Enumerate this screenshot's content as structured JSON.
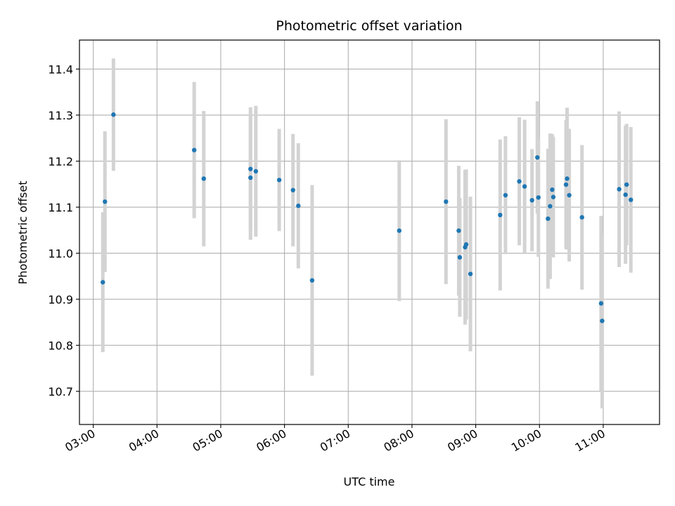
{
  "chart_data": {
    "type": "scatter",
    "title": "Photometric offset variation",
    "xlabel": "UTC time",
    "ylabel": "Photometric offset",
    "x_unit": "UTC time (HH:MM)",
    "x_ticks": [
      "03:00",
      "04:00",
      "05:00",
      "06:00",
      "07:00",
      "08:00",
      "09:00",
      "10:00",
      "11:00"
    ],
    "y_ticks": [
      "10.7",
      "10.8",
      "10.9",
      "11.0",
      "11.1",
      "11.2",
      "11.3",
      "11.4"
    ],
    "xlim": [
      "02:47",
      "11:53"
    ],
    "ylim": [
      10.628,
      11.463
    ],
    "grid": true,
    "point_color": "#1f77b4",
    "errorbar_color": "#d3d3d3",
    "series": [
      {
        "points": [
          {
            "x": "03:09",
            "y": 10.937,
            "err": 0.152
          },
          {
            "x": "03:11",
            "y": 11.112,
            "err": 0.153
          },
          {
            "x": "03:19",
            "y": 11.301,
            "err": 0.122
          },
          {
            "x": "04:35",
            "y": 11.224,
            "err": 0.148
          },
          {
            "x": "04:44",
            "y": 11.162,
            "err": 0.147
          },
          {
            "x": "05:28",
            "y": 11.183,
            "err": 0.134
          },
          {
            "x": "05:28",
            "y": 11.164,
            "err": 0.135
          },
          {
            "x": "05:33",
            "y": 11.178,
            "err": 0.142
          },
          {
            "x": "05:55",
            "y": 11.159,
            "err": 0.111
          },
          {
            "x": "06:08",
            "y": 11.137,
            "err": 0.122
          },
          {
            "x": "06:13",
            "y": 11.103,
            "err": 0.136
          },
          {
            "x": "06:26",
            "y": 10.941,
            "err": 0.207
          },
          {
            "x": "07:48",
            "y": 11.049,
            "err": 0.153
          },
          {
            "x": "08:32",
            "y": 11.112,
            "err": 0.179
          },
          {
            "x": "08:44",
            "y": 11.049,
            "err": 0.141
          },
          {
            "x": "08:45",
            "y": 10.991,
            "err": 0.129
          },
          {
            "x": "08:50",
            "y": 11.013,
            "err": 0.168
          },
          {
            "x": "08:51",
            "y": 11.019,
            "err": 0.163
          },
          {
            "x": "08:55",
            "y": 10.955,
            "err": 0.168
          },
          {
            "x": "09:23",
            "y": 11.083,
            "err": 0.164
          },
          {
            "x": "09:28",
            "y": 11.126,
            "err": 0.128
          },
          {
            "x": "09:41",
            "y": 11.156,
            "err": 0.139
          },
          {
            "x": "09:46",
            "y": 11.145,
            "err": 0.145
          },
          {
            "x": "09:53",
            "y": 11.115,
            "err": 0.111
          },
          {
            "x": "09:58",
            "y": 11.208,
            "err": 0.122
          },
          {
            "x": "09:59",
            "y": 11.121,
            "err": 0.129
          },
          {
            "x": "10:08",
            "y": 11.075,
            "err": 0.152
          },
          {
            "x": "10:10",
            "y": 11.102,
            "err": 0.158
          },
          {
            "x": "10:12",
            "y": 11.138,
            "err": 0.121
          },
          {
            "x": "10:13",
            "y": 11.122,
            "err": 0.131
          },
          {
            "x": "10:25",
            "y": 11.149,
            "err": 0.14
          },
          {
            "x": "10:26",
            "y": 11.162,
            "err": 0.154
          },
          {
            "x": "10:28",
            "y": 11.126,
            "err": 0.144
          },
          {
            "x": "10:40",
            "y": 11.078,
            "err": 0.157
          },
          {
            "x": "10:58",
            "y": 10.891,
            "err": 0.19
          },
          {
            "x": "10:59",
            "y": 10.853,
            "err": 0.19
          },
          {
            "x": "11:15",
            "y": 11.139,
            "err": 0.169
          },
          {
            "x": "11:21",
            "y": 11.127,
            "err": 0.15
          },
          {
            "x": "11:22",
            "y": 11.149,
            "err": 0.132
          },
          {
            "x": "11:26",
            "y": 11.116,
            "err": 0.158
          }
        ]
      }
    ]
  }
}
